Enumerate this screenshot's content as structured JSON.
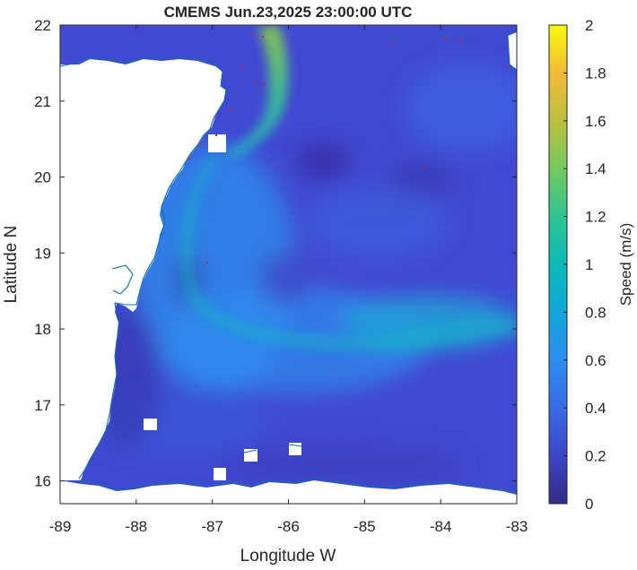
{
  "title": "CMEMS Jun.23,2025 23:00:00 UTC",
  "x_axis": {
    "label": "Longitude W",
    "ticks": [
      "-89",
      "-88",
      "-87",
      "-86",
      "-85",
      "-84",
      "-83"
    ],
    "range": [
      -89,
      -83
    ]
  },
  "y_axis": {
    "label": "Latitude N",
    "ticks": [
      "16",
      "17",
      "18",
      "19",
      "20",
      "21",
      "22"
    ],
    "range": [
      15.7,
      22
    ]
  },
  "colorbar": {
    "label": "Speed (m/s)",
    "ticks": [
      "0",
      "0.2",
      "0.4",
      "0.6",
      "0.8",
      "1",
      "1.2",
      "1.4",
      "1.6",
      "1.8",
      "2"
    ],
    "range": [
      0,
      2
    ],
    "colormap": "parula"
  },
  "colors": {
    "low": "#3e26a8",
    "mid_low": "#2f7ff2",
    "mid": "#13bdb4",
    "mid_high": "#8dca37",
    "high": "#fbfa15",
    "coastline": "#0f6fa8",
    "land": "#ffffff"
  }
}
